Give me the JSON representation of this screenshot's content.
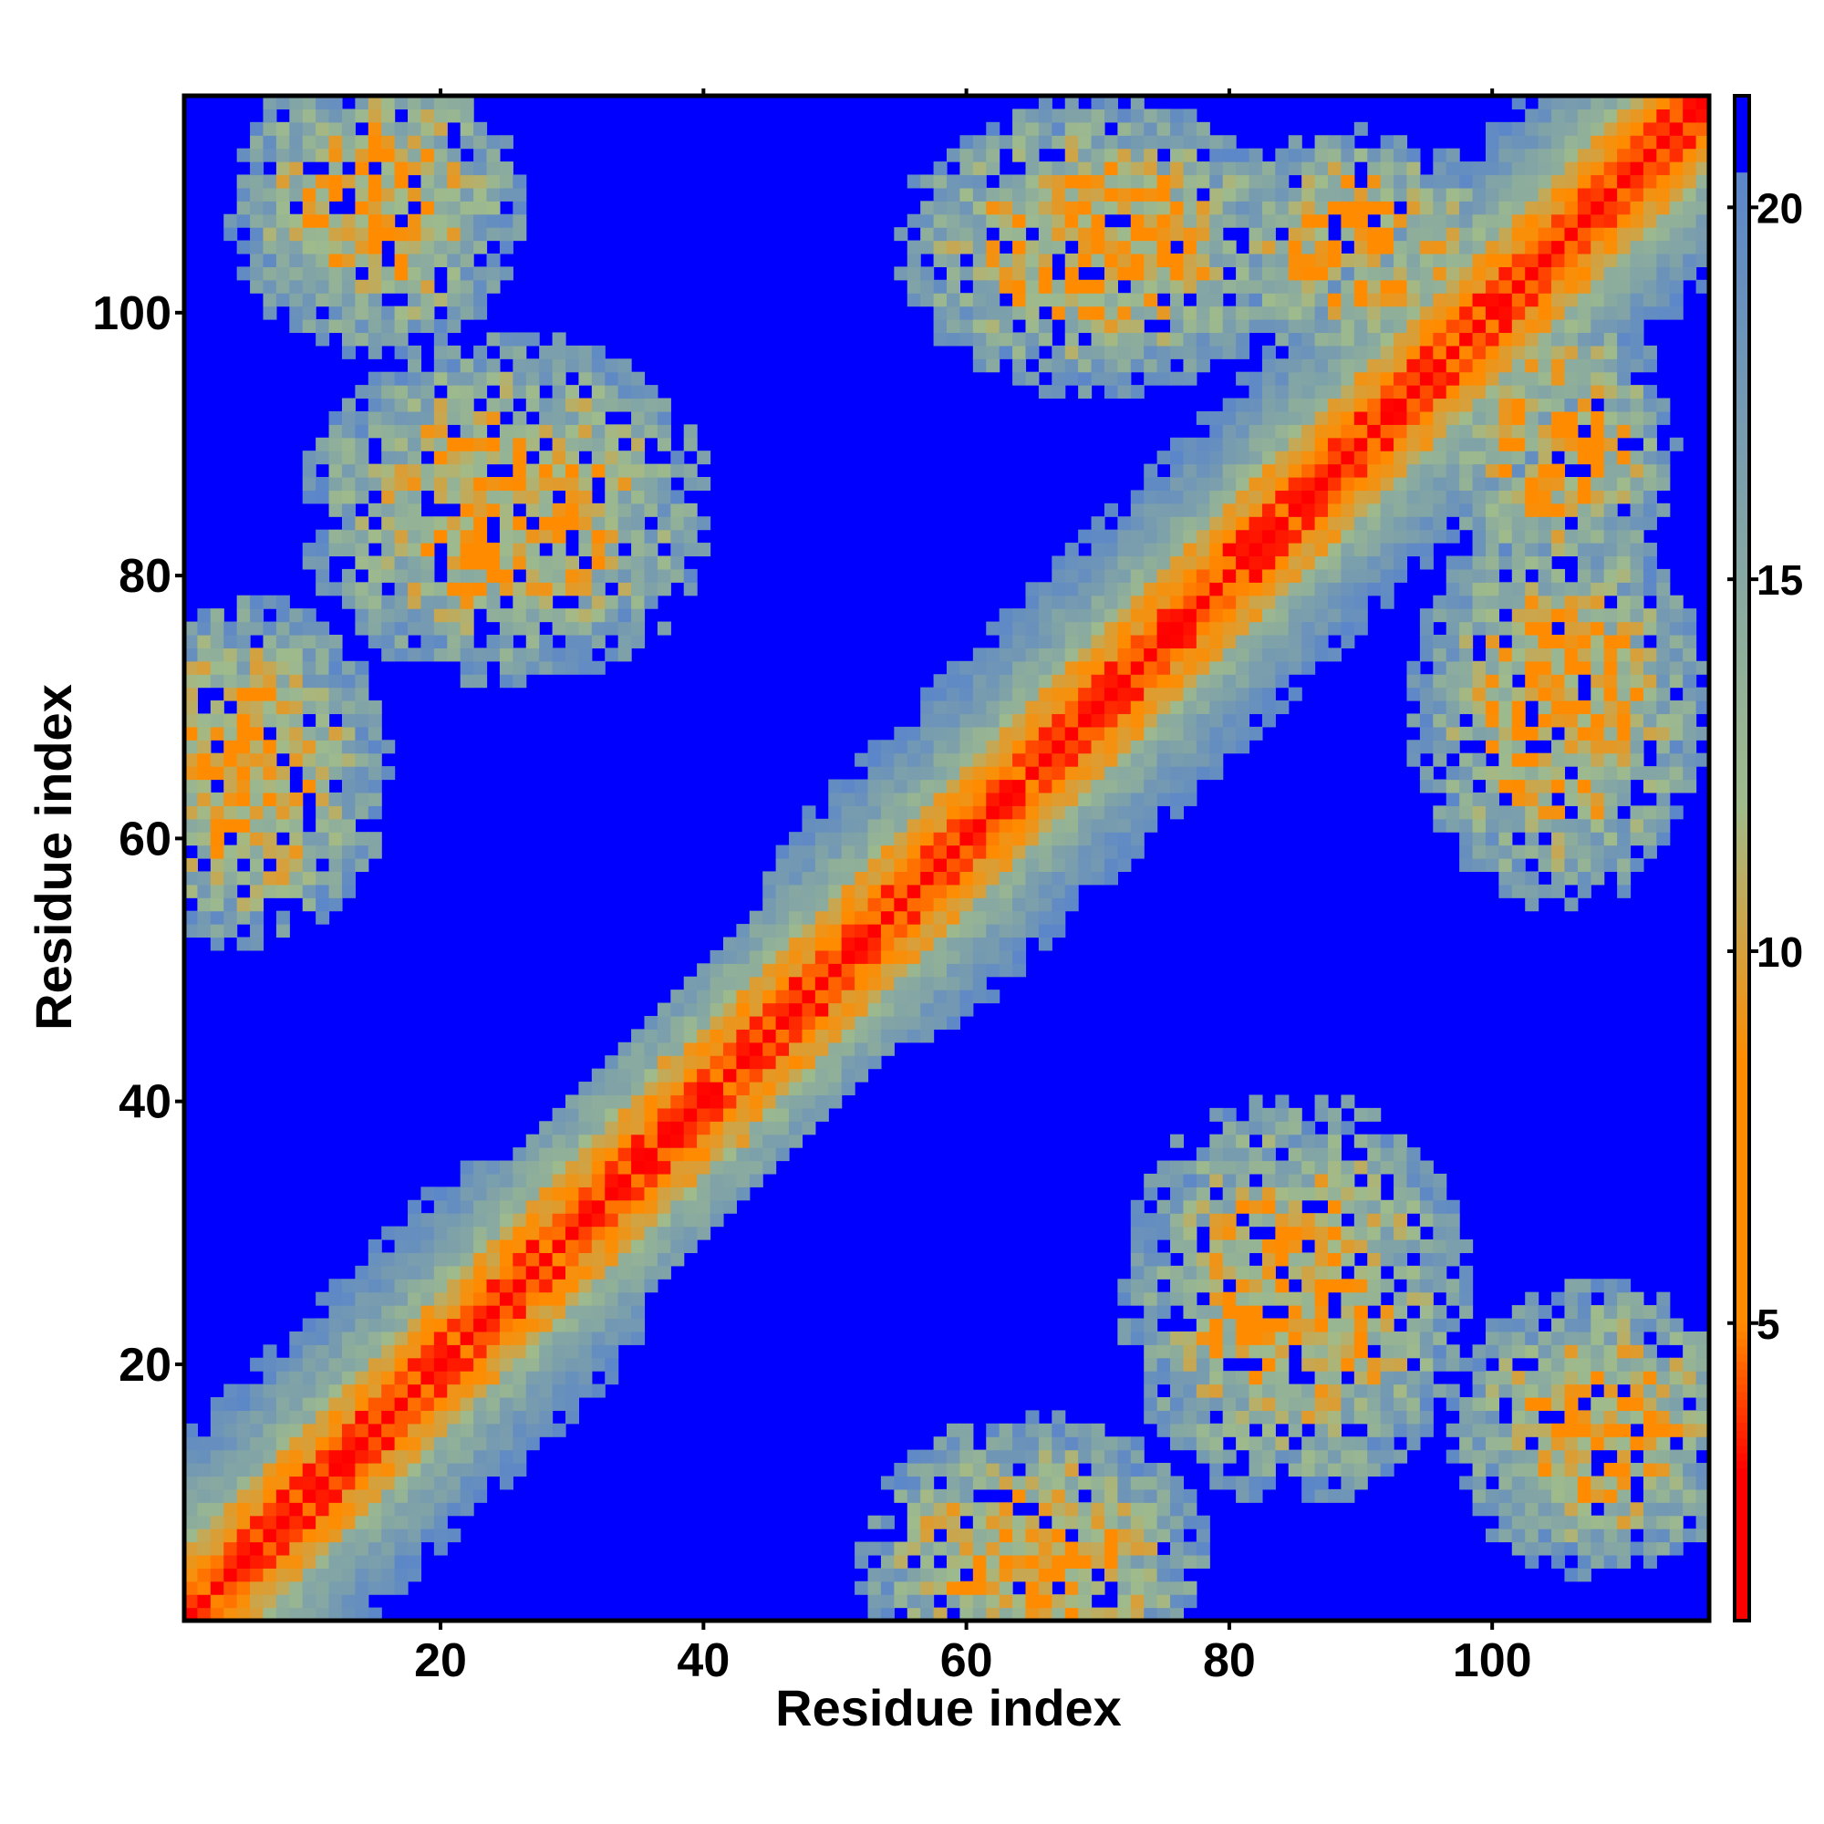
{
  "chart_data": {
    "type": "heatmap",
    "xlabel": "Residue index",
    "ylabel": "Residue index",
    "n_residues": 116,
    "xlim": [
      1,
      116
    ],
    "ylim": [
      1,
      116
    ],
    "x_ticks": [
      20,
      40,
      60,
      80,
      100
    ],
    "y_ticks": [
      20,
      40,
      60,
      80,
      100
    ],
    "colorbar": {
      "range": [
        1,
        21.5
      ],
      "ticks": [
        5,
        10,
        15,
        20
      ],
      "colors": {
        "low": "#ff0000",
        "mid_low": "#ff8c00",
        "mid": "#9fbb8c",
        "high": "#5b86c9",
        "cutoff": "#0000ff"
      }
    },
    "contact_map": {
      "description_free": true,
      "diagonal_band_width": 8,
      "domains": [
        {
          "x_range": [
            1,
            35
          ],
          "y_range": [
            1,
            35
          ]
        },
        {
          "x_range": [
            45,
            116
          ],
          "y_range": [
            45,
            116
          ]
        }
      ],
      "off_diagonal_regions": [
        {
          "center": [
            5,
            65
          ],
          "spread": [
            10,
            12
          ]
        },
        {
          "center": [
            25,
            85
          ],
          "spread": [
            14,
            12
          ]
        },
        {
          "center": [
            15,
            108
          ],
          "spread": [
            10,
            10
          ]
        },
        {
          "center": [
            65,
            10
          ],
          "spread": [
            12,
            10
          ]
        },
        {
          "center": [
            85,
            25
          ],
          "spread": [
            12,
            12
          ]
        },
        {
          "center": [
            108,
            15
          ],
          "spread": [
            10,
            10
          ]
        },
        {
          "center": [
            70,
            105
          ],
          "spread": [
            14,
            10
          ]
        },
        {
          "center": [
            105,
            70
          ],
          "spread": [
            10,
            14
          ]
        },
        {
          "center": [
            90,
            105
          ],
          "spread": [
            10,
            8
          ]
        },
        {
          "center": [
            105,
            90
          ],
          "spread": [
            8,
            10
          ]
        },
        {
          "center": [
            40,
            40
          ],
          "spread": [
            6,
            6
          ]
        }
      ]
    }
  }
}
